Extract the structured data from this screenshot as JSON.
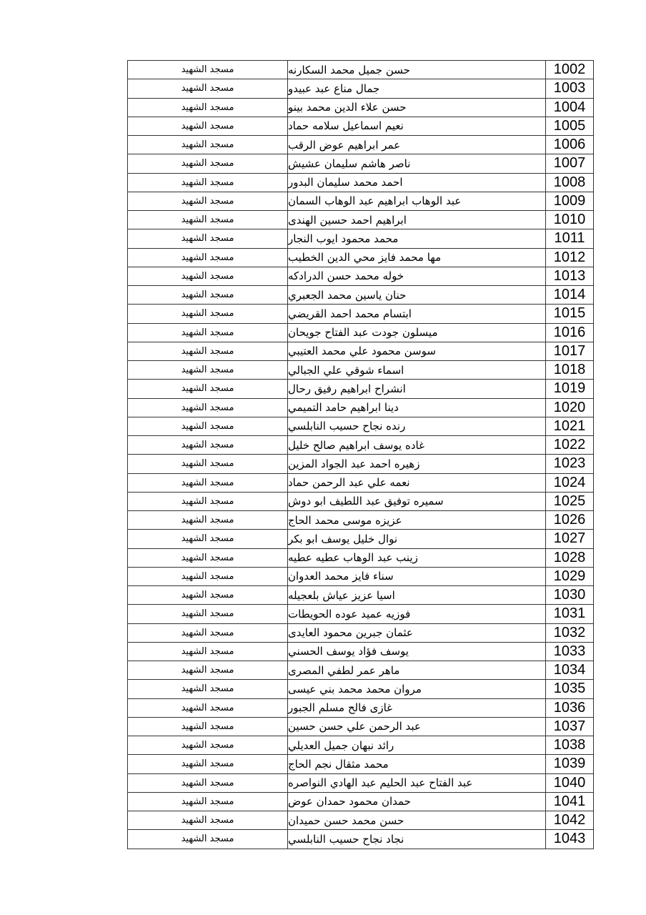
{
  "table": {
    "rows": [
      [
        "1002",
        "حسن جميل محمد السكارنه",
        "مسجد الشهيد"
      ],
      [
        "1003",
        "جمال مناع عبد عبيدو",
        "مسجد الشهيد"
      ],
      [
        "1004",
        "حسن علاء الدين محمد بينو",
        "مسجد الشهيد"
      ],
      [
        "1005",
        "نعيم اسماعيل سلامه حماد",
        "مسجد الشهيد"
      ],
      [
        "1006",
        "عمر ابراهيم عوض الرقب",
        "مسجد الشهيد"
      ],
      [
        "1007",
        "ناصر هاشم سليمان عشيش",
        "مسجد الشهيد"
      ],
      [
        "1008",
        "احمد محمد سليمان البدور",
        "مسجد الشهيد"
      ],
      [
        "1009",
        "عبد الوهاب ابراهيم عبد الوهاب السمان",
        "مسجد الشهيد"
      ],
      [
        "1010",
        "ابراهيم احمد حسين الهندى",
        "مسجد الشهيد"
      ],
      [
        "1011",
        "محمد محمود ايوب النجار",
        "مسجد الشهيد"
      ],
      [
        "1012",
        "مها محمد فايز محي الدين الخطيب",
        "مسجد الشهيد"
      ],
      [
        "1013",
        "خوله محمد حسن الدرادكه",
        "مسجد الشهيد"
      ],
      [
        "1014",
        "حنان ياسين محمد الجعبري",
        "مسجد الشهيد"
      ],
      [
        "1015",
        "ابتسام محمد احمد القريضي",
        "مسجد الشهيد"
      ],
      [
        "1016",
        "ميسلون جودت عبد الفتاح جويحان",
        "مسجد الشهيد"
      ],
      [
        "1017",
        "سوسن محمود علي محمد العتيبي",
        "مسجد الشهيد"
      ],
      [
        "1018",
        "اسماء شوقي علي الجبالي",
        "مسجد الشهيد"
      ],
      [
        "1019",
        "انشراح ابراهيم رفيق رحال",
        "مسجد الشهيد"
      ],
      [
        "1020",
        "دينا ابراهيم حامد التميمي",
        "مسجد الشهيد"
      ],
      [
        "1021",
        "رنده نجاح حسيب النابلسي",
        "مسجد الشهيد"
      ],
      [
        "1022",
        "غاده يوسف ابراهيم صالح خليل",
        "مسجد الشهيد"
      ],
      [
        "1023",
        "زهيره احمد عبد الجواد المزين",
        "مسجد الشهيد"
      ],
      [
        "1024",
        "نعمه علي عبد الرحمن حماد",
        "مسجد الشهيد"
      ],
      [
        "1025",
        "سميره توفيق عبد اللطيف ابو دوش",
        "مسجد الشهيد"
      ],
      [
        "1026",
        "عزيزه موسى محمد الحاج",
        "مسجد الشهيد"
      ],
      [
        "1027",
        "نوال خليل يوسف ابو بكر",
        "مسجد الشهيد"
      ],
      [
        "1028",
        "زينب عبد الوهاب عطيه عطيه",
        "مسجد الشهيد"
      ],
      [
        "1029",
        "سناء فايز محمد العدوان",
        "مسجد الشهيد"
      ],
      [
        "1030",
        "اسيا عزيز عياش بلعجيله",
        "مسجد الشهيد"
      ],
      [
        "1031",
        "فوزيه عميد عوده الحويطات",
        "مسجد الشهيد"
      ],
      [
        "1032",
        "عثمان جبرين محمود العايدى",
        "مسجد الشهيد"
      ],
      [
        "1033",
        "يوسف فؤاد يوسف الحسني",
        "مسجد الشهيد"
      ],
      [
        "1034",
        "ماهر عمر لطفي المصرى",
        "مسجد الشهيد"
      ],
      [
        "1035",
        "مروان محمد محمد بني عيسى",
        "مسجد الشهيد"
      ],
      [
        "1036",
        "غازى فالح مسلم الجبور",
        "مسجد الشهيد"
      ],
      [
        "1037",
        "عبد الرحمن علي حسن حسين",
        "مسجد الشهيد"
      ],
      [
        "1038",
        "رائد نبهان جميل العديلي",
        "مسجد الشهيد"
      ],
      [
        "1039",
        "محمد مثقال نجم الحاج",
        "مسجد الشهيد"
      ],
      [
        "1040",
        "عبد الفتاح عبد الحليم عبد الهادي النواصره",
        "مسجد الشهيد"
      ],
      [
        "1041",
        "حمدان محمود حمدان عوض",
        "مسجد الشهيد"
      ],
      [
        "1042",
        "حسن محمد حسن حميدان",
        "مسجد الشهيد"
      ],
      [
        "1043",
        "نجاد نجاح حسيب النابلسي",
        "مسجد الشهيد"
      ]
    ]
  }
}
